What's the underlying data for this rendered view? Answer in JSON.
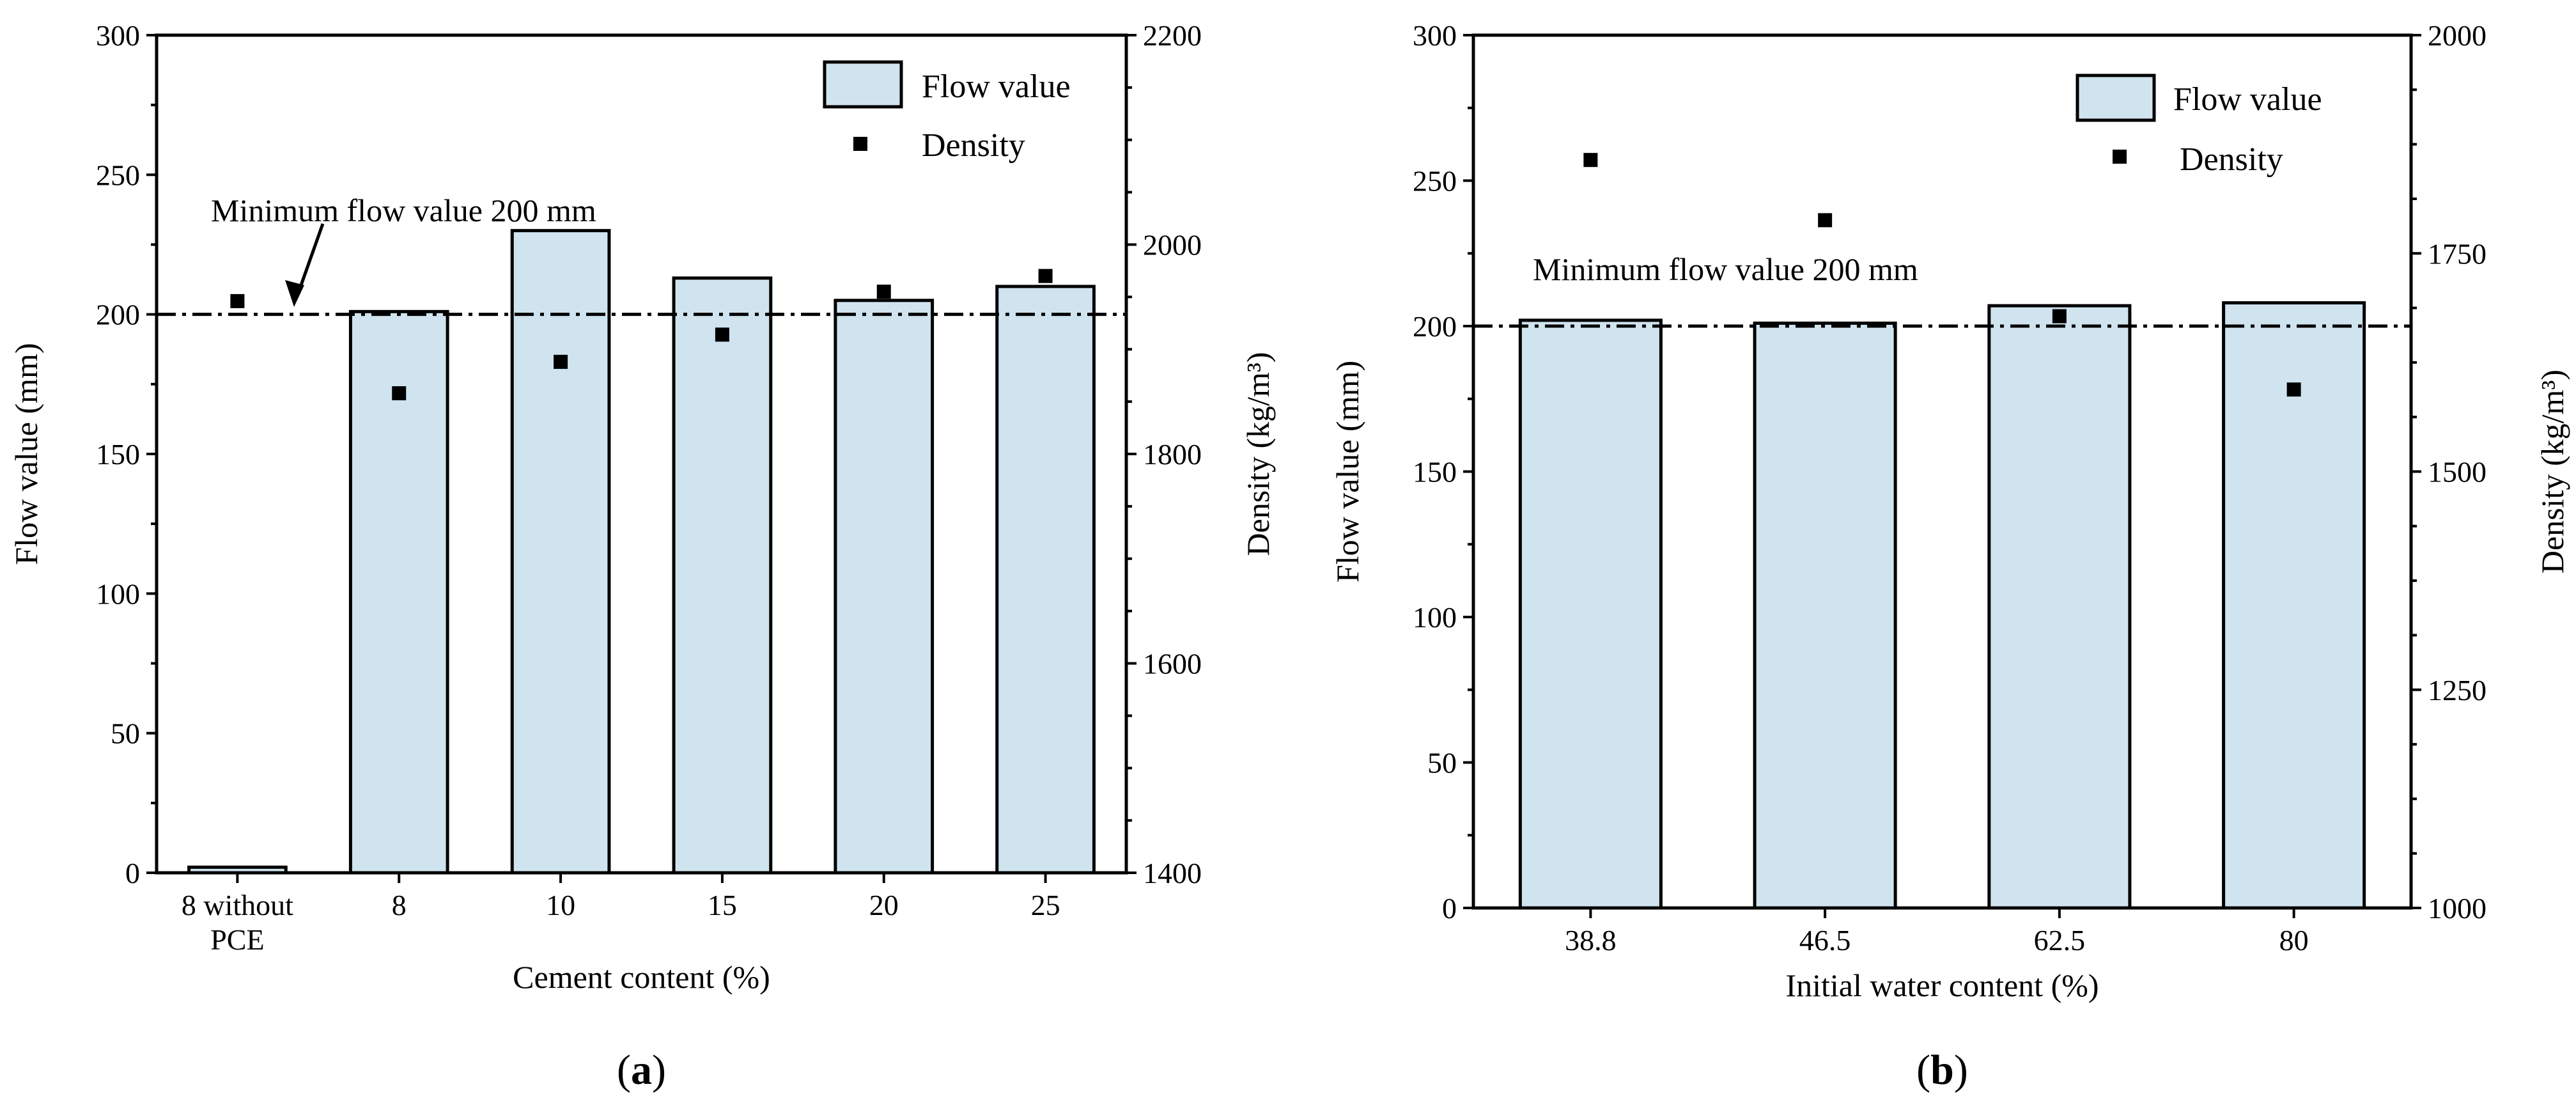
{
  "chart_data": [
    {
      "type": "bar",
      "panel_label": "a",
      "xlabel": "Cement content (%)",
      "categories": [
        [
          "8 without",
          "PCE"
        ],
        [
          "8"
        ],
        [
          "10"
        ],
        [
          "15"
        ],
        [
          "20"
        ],
        [
          "25"
        ]
      ],
      "series": [
        {
          "name": "Flow value",
          "kind": "bar",
          "axis": "left",
          "values": [
            2,
            201,
            230,
            213,
            205,
            210
          ]
        },
        {
          "name": "Density",
          "kind": "scatter",
          "axis": "right",
          "values": [
            1946,
            1858,
            1888,
            1914,
            1955,
            1970
          ]
        }
      ],
      "ylabel": "Flow value (mm)",
      "ylim": [
        0,
        300
      ],
      "yticks": [
        0,
        50,
        100,
        150,
        200,
        250,
        300
      ],
      "y2label": "Density (kg/m³)",
      "y2lim": [
        1400,
        2200
      ],
      "y2ticks": [
        1400,
        1600,
        1800,
        2000,
        2200
      ],
      "reference_line": {
        "value": 200,
        "label": "Minimum flow value 200 mm"
      },
      "legend": {
        "position": "top-right",
        "entries": [
          "Flow value",
          "Density"
        ]
      }
    },
    {
      "type": "bar",
      "panel_label": "b",
      "xlabel": "Initial water content (%)",
      "categories": [
        [
          "38.8"
        ],
        [
          "46.5"
        ],
        [
          "62.5"
        ],
        [
          "80"
        ]
      ],
      "series": [
        {
          "name": "Flow value",
          "kind": "bar",
          "axis": "left",
          "values": [
            202,
            201,
            207,
            208
          ]
        },
        {
          "name": "Density",
          "kind": "scatter",
          "axis": "right",
          "values": [
            1857,
            1788,
            1678,
            1594
          ]
        }
      ],
      "ylabel": "Flow value (mm)",
      "ylim": [
        0,
        300
      ],
      "yticks": [
        0,
        50,
        100,
        150,
        200,
        250,
        300
      ],
      "y2label": "Density (kg/m³)",
      "y2lim": [
        1000,
        2000
      ],
      "y2ticks": [
        1000,
        1250,
        1500,
        1750,
        2000
      ],
      "reference_line": {
        "value": 200,
        "label": "Minimum flow value 200 mm"
      },
      "legend": {
        "position": "top-right",
        "entries": [
          "Flow value",
          "Density"
        ]
      }
    }
  ]
}
